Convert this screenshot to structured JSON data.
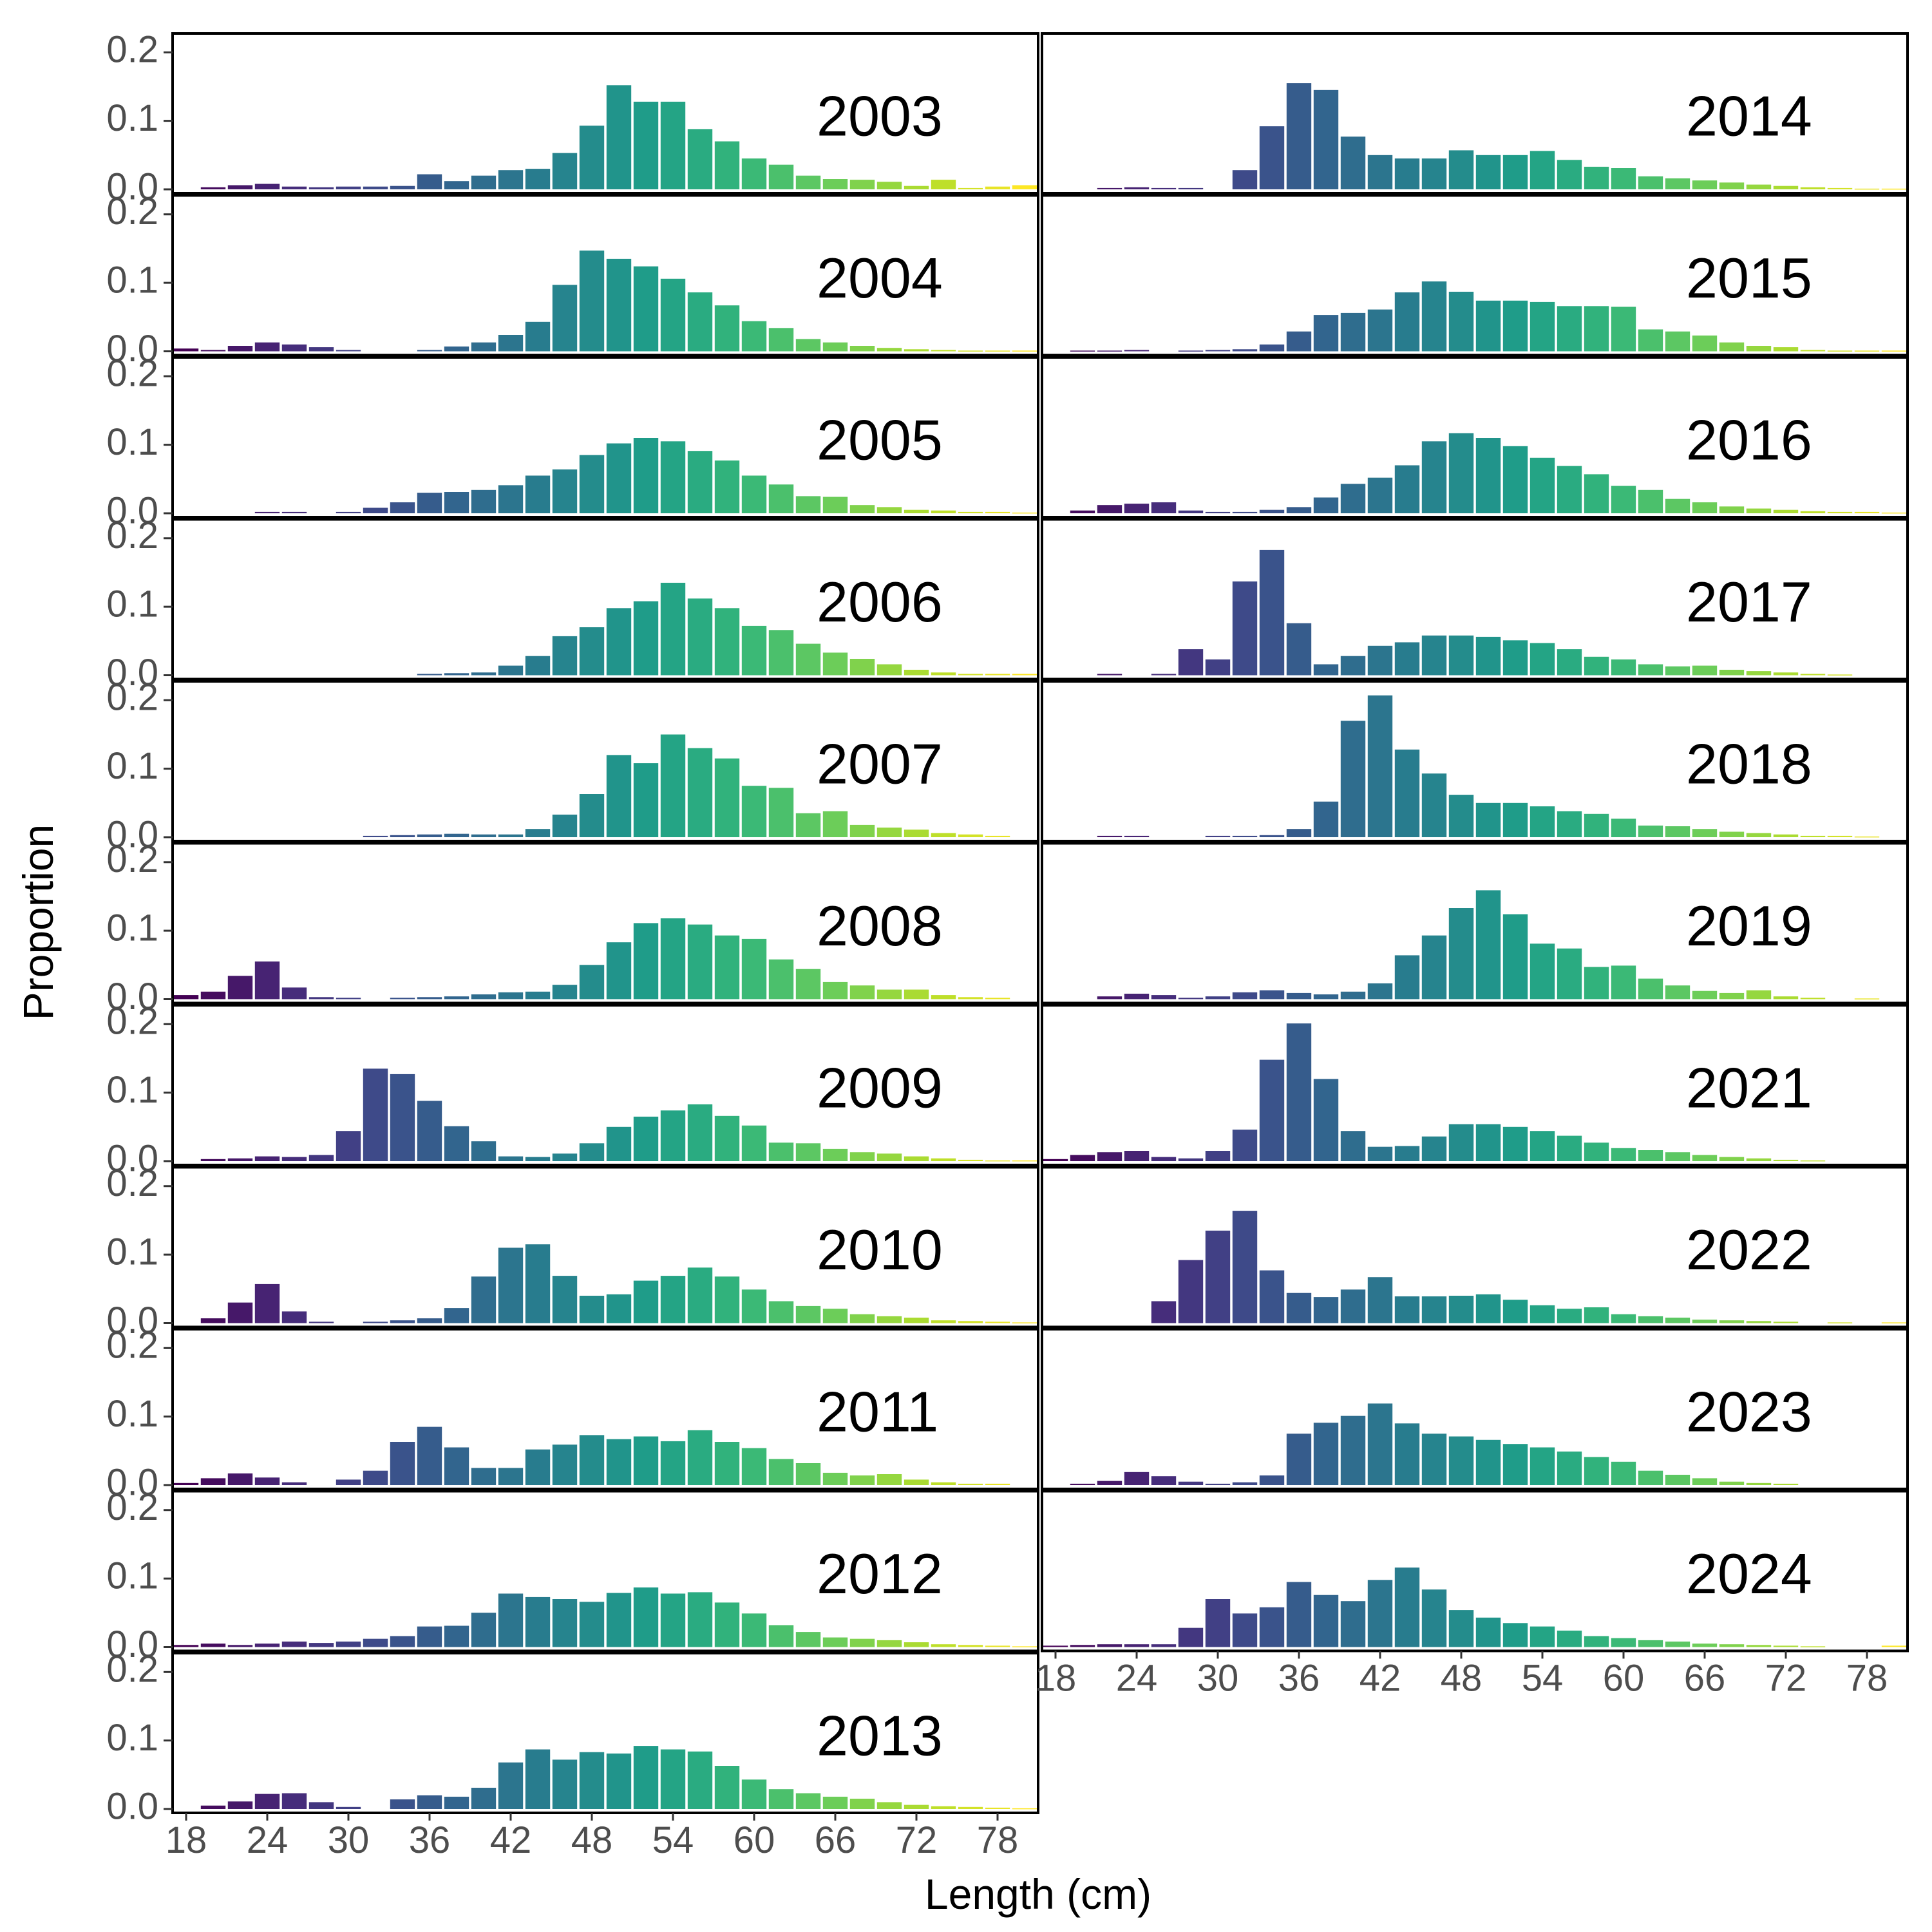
{
  "chart_data": {
    "type": "bar",
    "layout": "faceted small multiples, 2 columns",
    "xlabel": "Length (cm)",
    "ylabel": "Proportion",
    "y_ticks": [
      "0.0",
      "0.1",
      "0.2"
    ],
    "y_tick_values": [
      0,
      0.1,
      0.2
    ],
    "ylim": [
      0,
      0.22
    ],
    "x_ticks": [
      "18",
      "24",
      "30",
      "36",
      "42",
      "48",
      "54",
      "60",
      "66",
      "72",
      "78"
    ],
    "x_tick_values": [
      18,
      24,
      30,
      36,
      42,
      48,
      54,
      60,
      66,
      72,
      78
    ],
    "xlim": [
      17,
      81
    ],
    "bin_lengths": [
      18,
      20,
      22,
      24,
      26,
      28,
      30,
      32,
      34,
      36,
      38,
      40,
      42,
      44,
      46,
      48,
      50,
      52,
      54,
      56,
      58,
      60,
      62,
      64,
      66,
      68,
      70,
      72,
      74,
      76,
      78,
      80
    ],
    "color_scale": "viridis",
    "grid": false,
    "legend": "none",
    "panels": [
      {
        "year": "2003",
        "values": [
          0.0,
          0.003,
          0.006,
          0.008,
          0.004,
          0.003,
          0.004,
          0.004,
          0.005,
          0.022,
          0.012,
          0.02,
          0.028,
          0.03,
          0.053,
          0.093,
          0.152,
          0.128,
          0.128,
          0.088,
          0.07,
          0.045,
          0.036,
          0.02,
          0.015,
          0.014,
          0.011,
          0.005,
          0.014,
          0.002,
          0.004,
          0.006
        ]
      },
      {
        "year": "2004",
        "values": [
          0.004,
          0.002,
          0.008,
          0.013,
          0.01,
          0.006,
          0.002,
          0.0,
          0.0,
          0.002,
          0.007,
          0.013,
          0.024,
          0.043,
          0.097,
          0.147,
          0.135,
          0.124,
          0.106,
          0.086,
          0.067,
          0.044,
          0.034,
          0.018,
          0.013,
          0.008,
          0.005,
          0.003,
          0.002,
          0.001,
          0.001,
          0.001
        ]
      },
      {
        "year": "2005",
        "values": [
          0.0,
          0.0,
          0.0,
          0.002,
          0.002,
          0.0,
          0.002,
          0.008,
          0.016,
          0.03,
          0.031,
          0.034,
          0.041,
          0.055,
          0.064,
          0.085,
          0.102,
          0.11,
          0.105,
          0.091,
          0.077,
          0.055,
          0.042,
          0.025,
          0.024,
          0.012,
          0.009,
          0.005,
          0.004,
          0.002,
          0.002,
          0.001
        ]
      },
      {
        "year": "2006",
        "values": [
          0.0,
          0.0,
          0.0,
          0.0,
          0.0,
          0.0,
          0.0,
          0.0,
          0.0,
          0.002,
          0.003,
          0.004,
          0.014,
          0.028,
          0.057,
          0.07,
          0.098,
          0.108,
          0.135,
          0.112,
          0.098,
          0.072,
          0.066,
          0.046,
          0.033,
          0.024,
          0.016,
          0.008,
          0.004,
          0.002,
          0.002,
          0.002
        ]
      },
      {
        "year": "2007",
        "values": [
          0.0,
          0.0,
          0.0,
          0.0,
          0.0,
          0.0,
          0.0,
          0.002,
          0.003,
          0.004,
          0.005,
          0.004,
          0.004,
          0.012,
          0.033,
          0.063,
          0.12,
          0.108,
          0.15,
          0.13,
          0.115,
          0.075,
          0.072,
          0.035,
          0.038,
          0.018,
          0.014,
          0.011,
          0.006,
          0.004,
          0.002,
          0.0
        ]
      },
      {
        "year": "2008",
        "values": [
          0.006,
          0.011,
          0.034,
          0.055,
          0.017,
          0.003,
          0.002,
          0.0,
          0.002,
          0.003,
          0.004,
          0.007,
          0.01,
          0.011,
          0.021,
          0.05,
          0.083,
          0.111,
          0.118,
          0.109,
          0.093,
          0.088,
          0.058,
          0.044,
          0.025,
          0.02,
          0.014,
          0.014,
          0.006,
          0.003,
          0.002,
          0.0
        ]
      },
      {
        "year": "2009",
        "values": [
          0.0,
          0.003,
          0.004,
          0.007,
          0.006,
          0.009,
          0.044,
          0.135,
          0.127,
          0.088,
          0.051,
          0.029,
          0.007,
          0.006,
          0.011,
          0.026,
          0.05,
          0.065,
          0.074,
          0.083,
          0.066,
          0.052,
          0.027,
          0.026,
          0.018,
          0.013,
          0.011,
          0.007,
          0.004,
          0.002,
          0.001,
          0.001
        ]
      },
      {
        "year": "2010",
        "values": [
          0.0,
          0.007,
          0.03,
          0.057,
          0.017,
          0.002,
          0.0,
          0.002,
          0.004,
          0.007,
          0.022,
          0.068,
          0.11,
          0.115,
          0.069,
          0.04,
          0.042,
          0.062,
          0.069,
          0.081,
          0.068,
          0.049,
          0.032,
          0.025,
          0.021,
          0.013,
          0.01,
          0.008,
          0.004,
          0.003,
          0.002,
          0.001
        ]
      },
      {
        "year": "2011",
        "values": [
          0.003,
          0.01,
          0.017,
          0.011,
          0.004,
          0.0,
          0.008,
          0.021,
          0.063,
          0.085,
          0.055,
          0.025,
          0.025,
          0.052,
          0.059,
          0.073,
          0.067,
          0.071,
          0.064,
          0.08,
          0.063,
          0.054,
          0.038,
          0.032,
          0.018,
          0.014,
          0.016,
          0.008,
          0.004,
          0.002,
          0.002,
          0.0
        ]
      },
      {
        "year": "2012",
        "values": [
          0.003,
          0.005,
          0.003,
          0.005,
          0.008,
          0.006,
          0.008,
          0.012,
          0.016,
          0.03,
          0.031,
          0.05,
          0.078,
          0.073,
          0.07,
          0.066,
          0.079,
          0.087,
          0.078,
          0.08,
          0.065,
          0.049,
          0.032,
          0.022,
          0.014,
          0.012,
          0.01,
          0.007,
          0.004,
          0.003,
          0.002,
          0.001
        ]
      },
      {
        "year": "2013",
        "values": [
          0.0,
          0.005,
          0.011,
          0.022,
          0.023,
          0.01,
          0.003,
          0.0,
          0.014,
          0.02,
          0.018,
          0.031,
          0.068,
          0.087,
          0.072,
          0.083,
          0.081,
          0.092,
          0.087,
          0.084,
          0.063,
          0.043,
          0.029,
          0.023,
          0.018,
          0.015,
          0.01,
          0.006,
          0.004,
          0.003,
          0.002,
          0.001
        ]
      },
      {
        "year": "2014",
        "values": [
          0.0,
          0.0,
          0.002,
          0.003,
          0.002,
          0.002,
          0.0,
          0.028,
          0.092,
          0.155,
          0.145,
          0.077,
          0.05,
          0.045,
          0.045,
          0.057,
          0.05,
          0.05,
          0.056,
          0.043,
          0.033,
          0.031,
          0.019,
          0.016,
          0.013,
          0.01,
          0.007,
          0.005,
          0.003,
          0.002,
          0.001,
          0.001
        ]
      },
      {
        "year": "2015",
        "values": [
          0.0,
          0.001,
          0.001,
          0.002,
          0.0,
          0.001,
          0.002,
          0.003,
          0.01,
          0.029,
          0.053,
          0.056,
          0.061,
          0.086,
          0.102,
          0.087,
          0.074,
          0.074,
          0.072,
          0.066,
          0.066,
          0.065,
          0.032,
          0.029,
          0.023,
          0.013,
          0.008,
          0.006,
          0.002,
          0.001,
          0.001,
          0.001
        ]
      },
      {
        "year": "2016",
        "values": [
          0.0,
          0.004,
          0.012,
          0.014,
          0.016,
          0.004,
          0.002,
          0.002,
          0.005,
          0.009,
          0.023,
          0.043,
          0.052,
          0.07,
          0.105,
          0.117,
          0.11,
          0.098,
          0.081,
          0.069,
          0.057,
          0.04,
          0.034,
          0.021,
          0.016,
          0.01,
          0.007,
          0.005,
          0.003,
          0.002,
          0.002,
          0.001
        ]
      },
      {
        "year": "2017",
        "values": [
          0.0,
          0.0,
          0.002,
          0.0,
          0.002,
          0.038,
          0.023,
          0.137,
          0.183,
          0.076,
          0.016,
          0.028,
          0.043,
          0.048,
          0.058,
          0.058,
          0.056,
          0.051,
          0.047,
          0.038,
          0.027,
          0.023,
          0.016,
          0.013,
          0.014,
          0.008,
          0.006,
          0.004,
          0.002,
          0.001,
          0.0,
          0.0
        ]
      },
      {
        "year": "2018",
        "values": [
          0.0,
          0.0,
          0.002,
          0.002,
          0.0,
          0.0,
          0.002,
          0.002,
          0.003,
          0.012,
          0.052,
          0.17,
          0.207,
          0.128,
          0.093,
          0.062,
          0.05,
          0.05,
          0.045,
          0.038,
          0.034,
          0.027,
          0.017,
          0.016,
          0.012,
          0.008,
          0.006,
          0.004,
          0.002,
          0.002,
          0.001,
          0.0
        ]
      },
      {
        "year": "2019",
        "values": [
          0.0,
          0.0,
          0.004,
          0.008,
          0.006,
          0.002,
          0.004,
          0.01,
          0.013,
          0.009,
          0.007,
          0.011,
          0.023,
          0.064,
          0.093,
          0.133,
          0.159,
          0.124,
          0.081,
          0.074,
          0.047,
          0.049,
          0.03,
          0.02,
          0.012,
          0.009,
          0.013,
          0.004,
          0.002,
          0.0,
          0.001,
          0.0
        ]
      },
      {
        "year": "2021",
        "values": [
          0.003,
          0.009,
          0.013,
          0.015,
          0.006,
          0.004,
          0.015,
          0.046,
          0.148,
          0.201,
          0.12,
          0.044,
          0.021,
          0.022,
          0.036,
          0.054,
          0.054,
          0.05,
          0.044,
          0.037,
          0.027,
          0.019,
          0.016,
          0.013,
          0.009,
          0.006,
          0.004,
          0.002,
          0.001,
          0.0,
          0.0,
          0.0
        ]
      },
      {
        "year": "2022",
        "values": [
          0.0,
          0.0,
          0.0,
          0.0,
          0.032,
          0.092,
          0.135,
          0.164,
          0.077,
          0.044,
          0.038,
          0.049,
          0.067,
          0.039,
          0.039,
          0.04,
          0.042,
          0.034,
          0.026,
          0.021,
          0.023,
          0.013,
          0.01,
          0.008,
          0.005,
          0.004,
          0.003,
          0.002,
          0.0,
          0.001,
          0.0,
          0.001
        ]
      },
      {
        "year": "2023",
        "values": [
          0.0,
          0.002,
          0.006,
          0.019,
          0.013,
          0.005,
          0.002,
          0.004,
          0.014,
          0.075,
          0.091,
          0.101,
          0.119,
          0.09,
          0.075,
          0.071,
          0.066,
          0.06,
          0.055,
          0.049,
          0.041,
          0.034,
          0.021,
          0.015,
          0.01,
          0.005,
          0.003,
          0.002,
          0.0,
          0.0,
          0.0,
          0.0
        ]
      },
      {
        "year": "2024",
        "values": [
          0.002,
          0.003,
          0.004,
          0.004,
          0.004,
          0.028,
          0.07,
          0.049,
          0.058,
          0.095,
          0.076,
          0.067,
          0.098,
          0.116,
          0.084,
          0.054,
          0.043,
          0.035,
          0.03,
          0.024,
          0.016,
          0.013,
          0.01,
          0.008,
          0.005,
          0.004,
          0.003,
          0.002,
          0.001,
          0.0,
          0.0,
          0.002
        ]
      }
    ]
  }
}
